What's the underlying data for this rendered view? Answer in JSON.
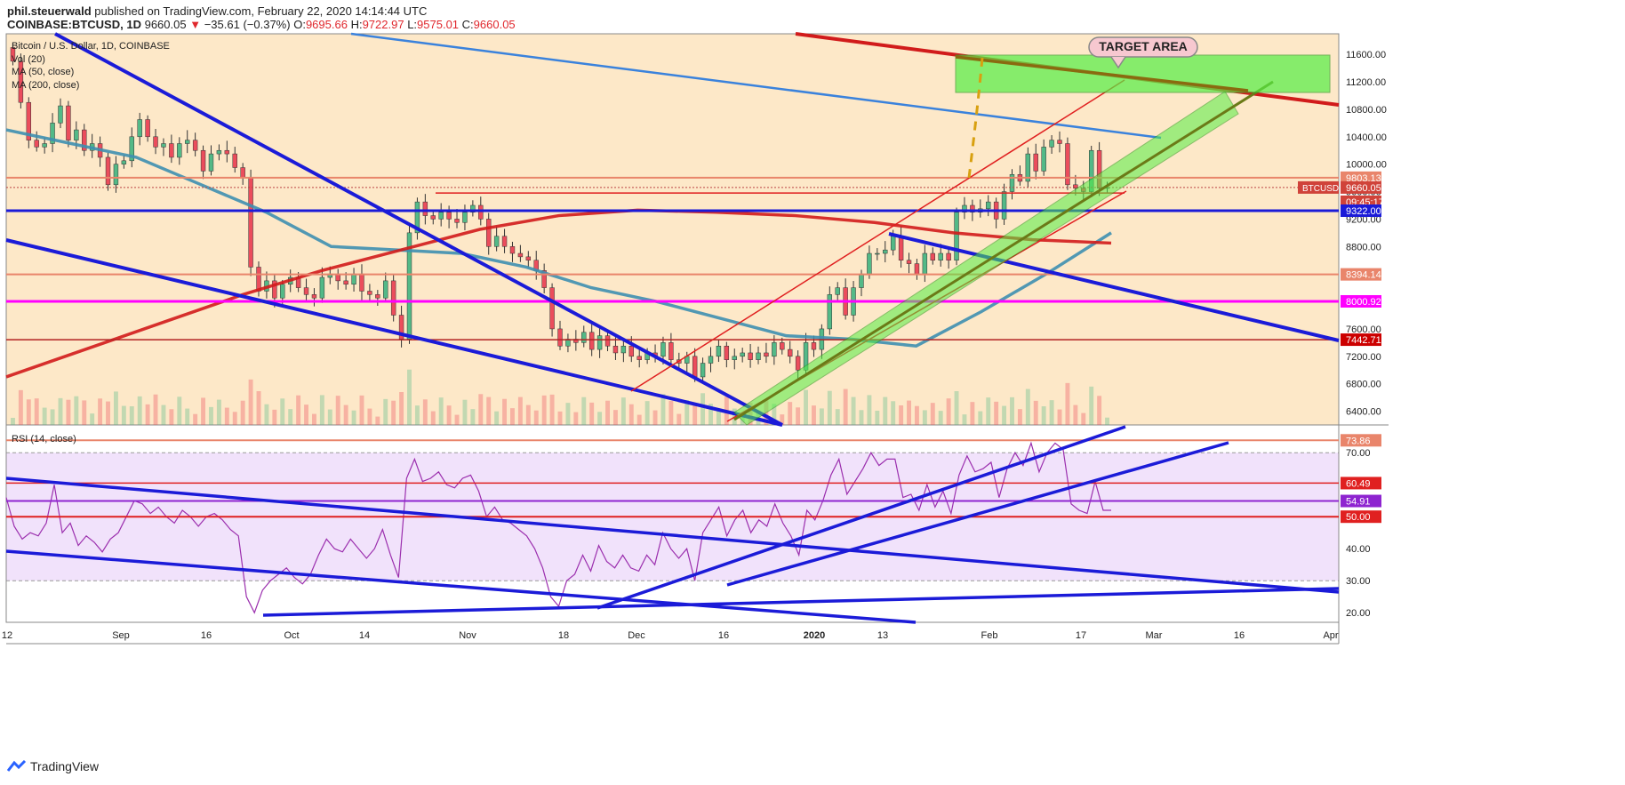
{
  "header": {
    "author": "phil.steuerwald",
    "published": "published on TradingView.com, February 22, 2020 14:14:44 UTC",
    "symbol": "COINBASE:BTCUSD, 1D",
    "last": "9660.05",
    "change": "−35.61 (−0.37%)",
    "open_label": "O:",
    "open": "9695.66",
    "high_label": "H:",
    "high": "9722.97",
    "low_label": "L:",
    "low": "9575.01",
    "close_label": "C:",
    "close": "9660.05"
  },
  "legend": {
    "title": "Bitcoin / U.S. Dollar, 1D, COINBASE",
    "vol": "Vol (20)",
    "ma50": "MA (50, close)",
    "ma200": "MA (200, close)",
    "rsi": "RSI (14, close)"
  },
  "annotation": {
    "target": "TARGET AREA"
  },
  "colors": {
    "background": "#fde8c8",
    "rsi_band": "#f1e2fb",
    "up": "#53b987",
    "down": "#eb4d5c",
    "ma50": "#3e8fb0",
    "ma200": "#d11b1b",
    "trend_blue": "#1b1bd8",
    "green_channel": "#55ee44",
    "magenta": "#ff00ff"
  },
  "chart_data": [
    {
      "type": "candlestick",
      "title": "Bitcoin / U.S. Dollar, 1D, COINBASE",
      "ylim": [
        6200,
        11900
      ],
      "y_ticks": [
        6400,
        6800,
        7200,
        7600,
        8000,
        8400,
        8800,
        9200,
        9600,
        10000,
        10400,
        10800,
        11200,
        11600
      ],
      "x_ticks": [
        "12",
        "Sep",
        "16",
        "Oct",
        "14",
        "Nov",
        "18",
        "Dec",
        "16",
        "2020",
        "13",
        "Feb",
        "17",
        "Mar",
        "16",
        "Apr"
      ],
      "series": [
        {
          "name": "BTCUSD",
          "values": [
            11500,
            10900,
            10350,
            10250,
            10300,
            10600,
            10850,
            10350,
            10500,
            10200,
            10300,
            10100,
            9700,
            10000,
            10050,
            10400,
            10650,
            10400,
            10250,
            10300,
            10100,
            10300,
            10350,
            10200,
            9900,
            10150,
            10200,
            10150,
            9950,
            9800,
            8500,
            8150,
            8300,
            8050,
            8250,
            8350,
            8200,
            8100,
            8050,
            8350,
            8400,
            8300,
            8250,
            8400,
            8150,
            8100,
            8050,
            8300,
            7800,
            7450,
            9000,
            9450,
            9250,
            9200,
            9300,
            9200,
            9150,
            9300,
            9400,
            9200,
            8800,
            8950,
            8800,
            8700,
            8650,
            8600,
            8450,
            8200,
            7600,
            7350,
            7450,
            7400,
            7550,
            7300,
            7500,
            7350,
            7250,
            7350,
            7200,
            7150,
            7250,
            7200,
            7400,
            7150,
            7100,
            7200,
            6900,
            7100,
            7200,
            7350,
            7150,
            7200,
            7250,
            7150,
            7250,
            7200,
            7400,
            7300,
            7200,
            7000,
            7400,
            7300,
            7600,
            8100,
            8200,
            7800,
            8200,
            8400,
            8700,
            8700,
            8750,
            8950,
            8600,
            8550,
            8400,
            8700,
            8600,
            8700,
            8600,
            9300,
            9400,
            9300,
            9350,
            9450,
            9200,
            9600,
            9850,
            9750,
            10150,
            9900,
            10250,
            10350,
            10300,
            9700,
            9650,
            9600,
            10200,
            9650,
            9660
          ]
        },
        {
          "name": "MA (50, close)",
          "values": [
            10500,
            10300,
            10100,
            9700,
            9300,
            8800,
            8750,
            8700,
            8500,
            8200,
            8000,
            7750,
            7500,
            7450,
            7350,
            7850,
            8400,
            9000
          ]
        },
        {
          "name": "MA (200, close)",
          "values": [
            6900,
            7300,
            7700,
            8100,
            8450,
            8750,
            9050,
            9250,
            9330,
            9300,
            9250,
            9150,
            9000,
            8900,
            8850
          ]
        }
      ],
      "price_labels": [
        "9803.13",
        "9660.05",
        "09:45:17",
        "9322.00",
        "8394.14",
        "8000.92",
        "7442.71"
      ],
      "symbol_tag": "BTCUSD"
    },
    {
      "type": "line",
      "title": "RSI (14, close)",
      "ylim": [
        17,
        77
      ],
      "y_ticks": [
        20.0,
        30.0,
        40.0,
        50.0,
        60.0,
        70.0
      ],
      "y_tick_labels": [
        "20.00",
        "30.00",
        "40.00",
        "50.00",
        "60.00",
        "70.00"
      ],
      "series": [
        {
          "name": "RSI (14, close)",
          "values": [
            56,
            47,
            43,
            45,
            44,
            48,
            60,
            45,
            48,
            41,
            44,
            42,
            39,
            43,
            45,
            50,
            55,
            54,
            51,
            53,
            50,
            48,
            52,
            50,
            47,
            50,
            51,
            49,
            46,
            44,
            25,
            20,
            27,
            30,
            32,
            34,
            31,
            29,
            32,
            38,
            43,
            40,
            39,
            43,
            40,
            37,
            40,
            46,
            38,
            31,
            62,
            68,
            61,
            62,
            64,
            60,
            59,
            62,
            63,
            58,
            50,
            53,
            49,
            48,
            46,
            44,
            40,
            34,
            25,
            22,
            30,
            32,
            38,
            33,
            41,
            36,
            34,
            38,
            34,
            33,
            38,
            35,
            45,
            40,
            37,
            40,
            30,
            45,
            49,
            53,
            44,
            49,
            52,
            45,
            49,
            47,
            54,
            48,
            44,
            38,
            52,
            49,
            55,
            63,
            68,
            57,
            61,
            65,
            70,
            66,
            68,
            68,
            56,
            57,
            52,
            60,
            53,
            58,
            51,
            63,
            69,
            64,
            65,
            67,
            56,
            65,
            70,
            66,
            73,
            64,
            70,
            73,
            71,
            54,
            52,
            51,
            61,
            52,
            52
          ]
        }
      ],
      "price_labels": [
        "73.86",
        "60.49",
        "54.91",
        "50.00"
      ]
    }
  ],
  "footer": {
    "brand": "TradingView"
  }
}
